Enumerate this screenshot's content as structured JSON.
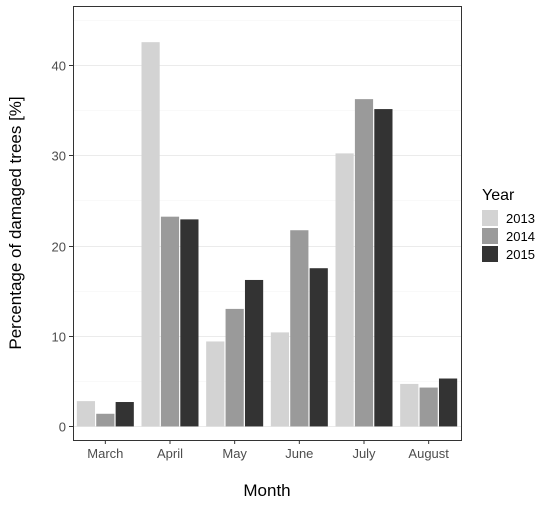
{
  "chart_data": {
    "type": "bar",
    "title": "",
    "xlabel": "Month",
    "ylabel": "Percentage of damaged trees [%]",
    "categories": [
      "March",
      "April",
      "May",
      "June",
      "July",
      "August"
    ],
    "ylim": [
      -1.5,
      46.5
    ],
    "yticks": [
      0,
      10,
      20,
      30,
      40
    ],
    "grid": true,
    "legend": {
      "title": "Year",
      "position": "right"
    },
    "series": [
      {
        "name": "2013",
        "color": "#d3d3d3",
        "values": [
          2.8,
          42.5,
          9.4,
          10.4,
          30.2,
          4.7
        ]
      },
      {
        "name": "2014",
        "color": "#9a9a9a",
        "values": [
          1.4,
          23.2,
          13.0,
          21.7,
          36.2,
          4.3
        ]
      },
      {
        "name": "2015",
        "color": "#333333",
        "values": [
          2.7,
          22.9,
          16.2,
          17.5,
          35.1,
          5.3
        ]
      }
    ]
  }
}
